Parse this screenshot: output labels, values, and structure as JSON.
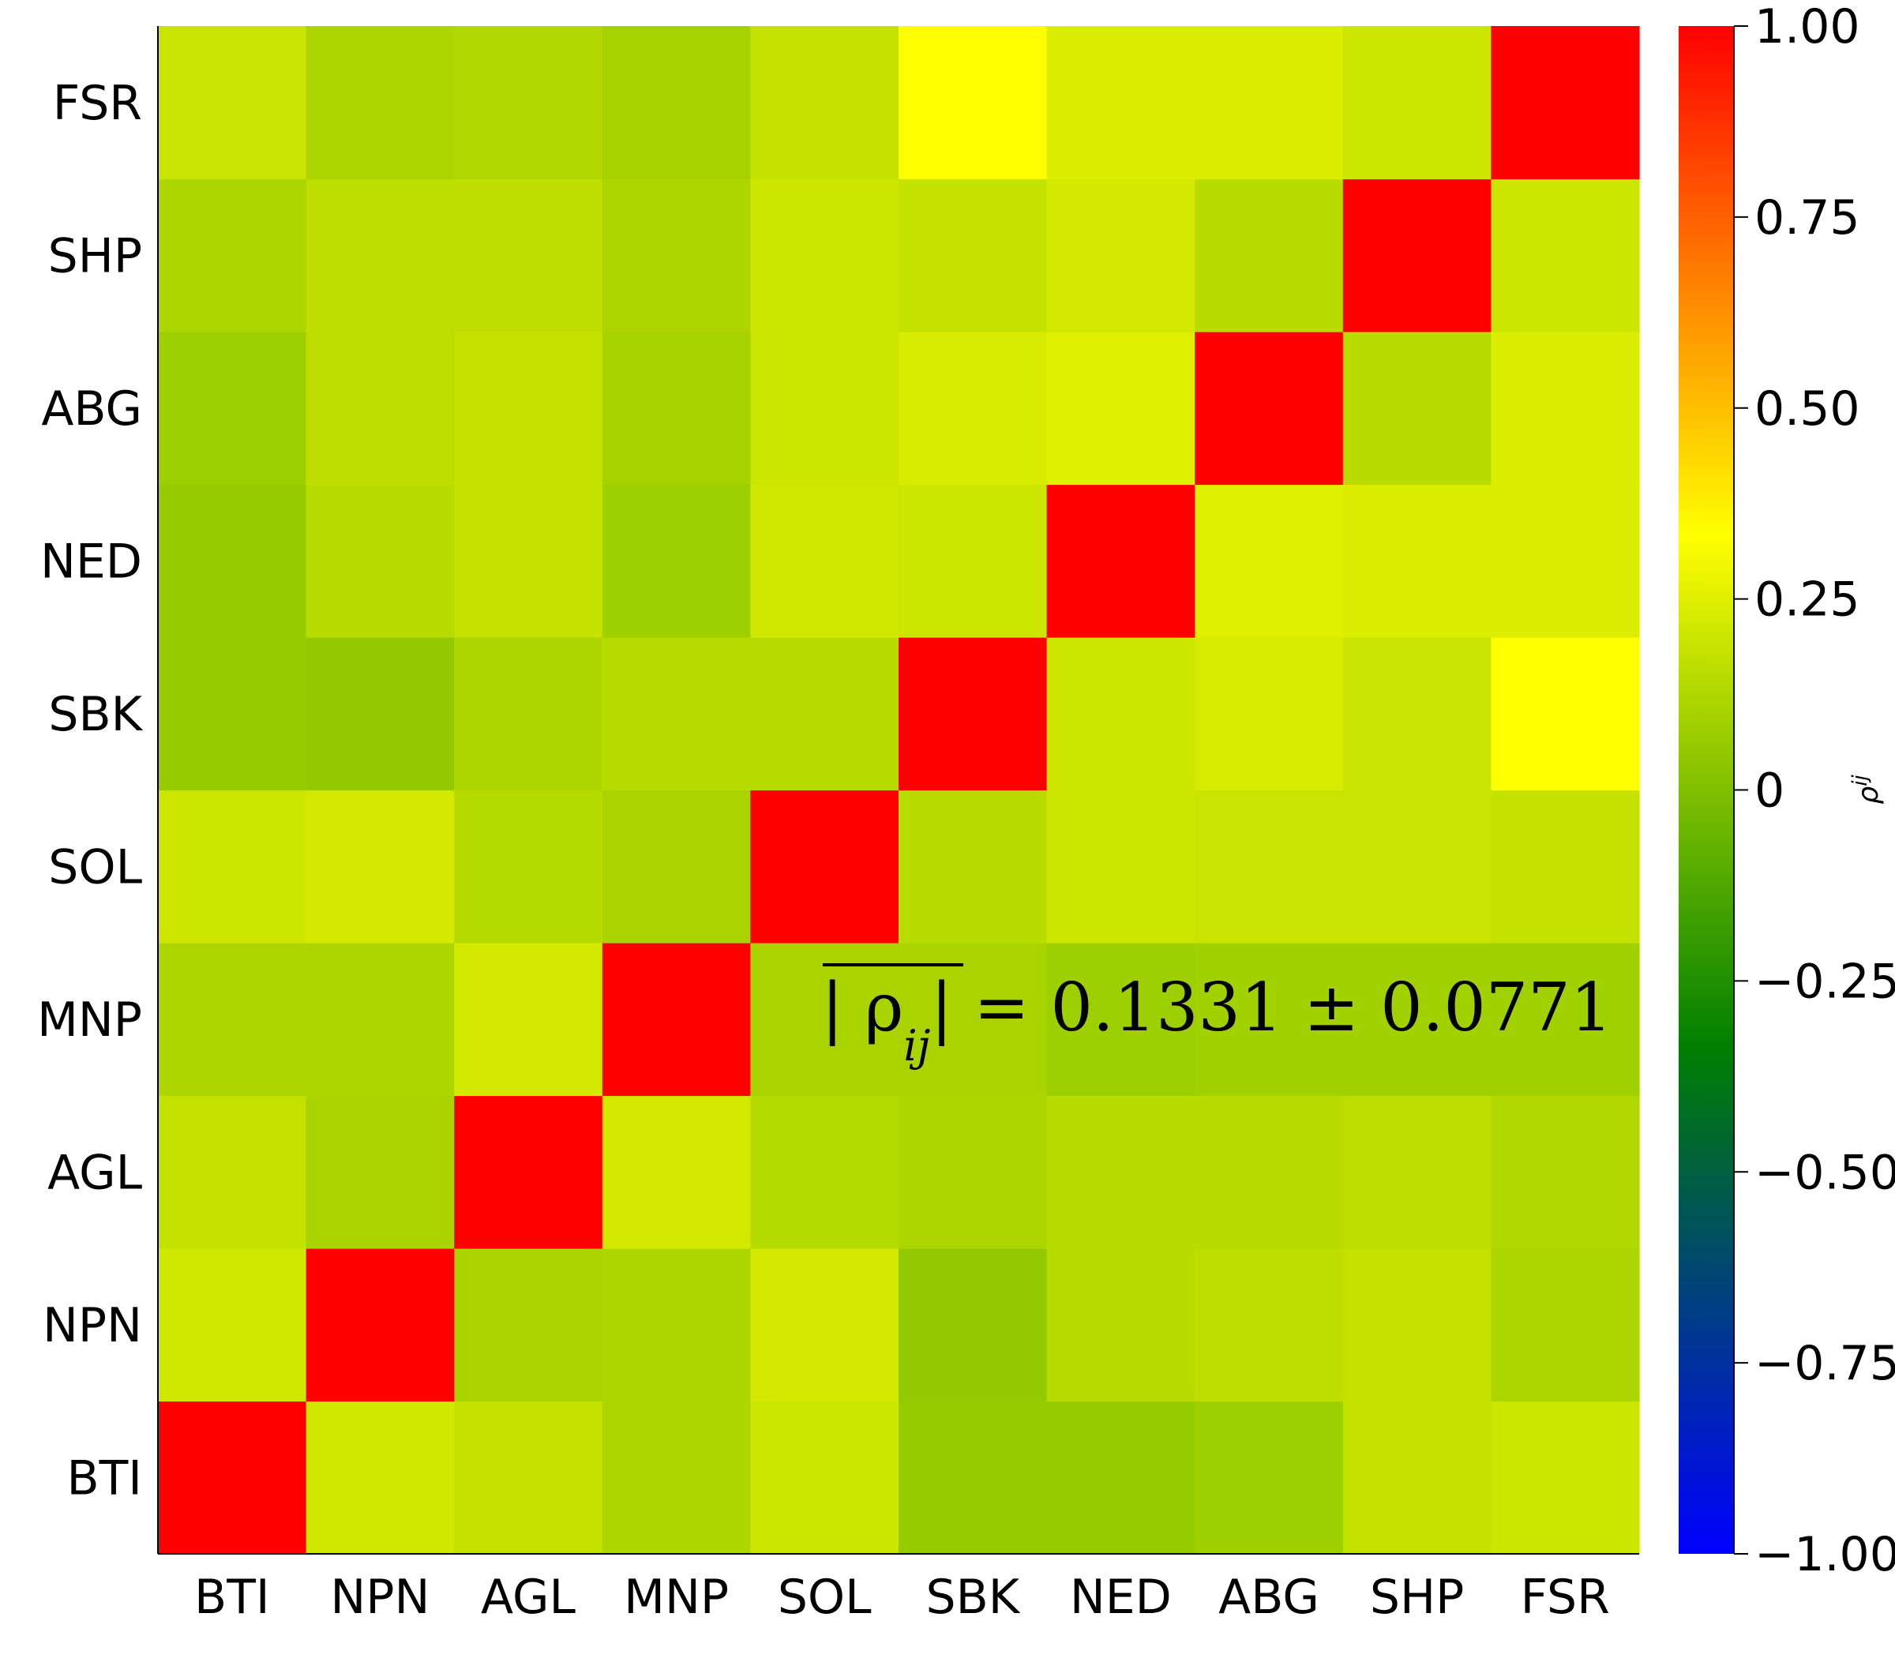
{
  "chart_data": {
    "type": "heatmap",
    "x_categories": [
      "BTI",
      "NPN",
      "AGL",
      "MNP",
      "SOL",
      "SBK",
      "NED",
      "ABG",
      "SHP",
      "FSR"
    ],
    "y_categories": [
      "BTI",
      "NPN",
      "AGL",
      "MNP",
      "SOL",
      "SBK",
      "NED",
      "ABG",
      "SHP",
      "FSR"
    ],
    "values": [
      [
        1.0,
        0.21,
        0.18,
        0.12,
        0.2,
        0.06,
        0.06,
        0.08,
        0.18,
        0.2
      ],
      [
        0.21,
        1.0,
        0.11,
        0.12,
        0.22,
        0.05,
        0.15,
        0.16,
        0.18,
        0.12
      ],
      [
        0.18,
        0.11,
        1.0,
        0.22,
        0.14,
        0.12,
        0.15,
        0.15,
        0.16,
        0.13
      ],
      [
        0.12,
        0.12,
        0.22,
        1.0,
        0.11,
        0.11,
        0.08,
        0.09,
        0.09,
        0.09
      ],
      [
        0.2,
        0.22,
        0.14,
        0.11,
        1.0,
        0.15,
        0.2,
        0.19,
        0.19,
        0.18
      ],
      [
        0.06,
        0.05,
        0.12,
        0.15,
        0.15,
        1.0,
        0.2,
        0.23,
        0.19,
        0.33
      ],
      [
        0.06,
        0.15,
        0.18,
        0.08,
        0.21,
        0.2,
        1.0,
        0.25,
        0.24,
        0.24
      ],
      [
        0.08,
        0.16,
        0.18,
        0.1,
        0.2,
        0.23,
        0.25,
        1.0,
        0.15,
        0.24
      ],
      [
        0.12,
        0.16,
        0.16,
        0.12,
        0.2,
        0.18,
        0.22,
        0.15,
        1.0,
        0.2
      ],
      [
        0.19,
        0.12,
        0.13,
        0.1,
        0.18,
        0.33,
        0.24,
        0.24,
        0.2,
        1.0
      ]
    ],
    "clim": [
      -1.0,
      1.0
    ],
    "colormap": [
      "#0000ff",
      "#008000",
      "#ffff00",
      "#ff0000"
    ],
    "colorbar": {
      "label": "ρ^{ij}",
      "ticks": [
        1.0,
        0.75,
        0.5,
        0.25,
        0,
        -0.25,
        -0.5,
        -0.75,
        -1.0
      ],
      "tick_labels": [
        "1.00",
        "0.75",
        "0.50",
        "0.25",
        "0",
        "−0.25",
        "−0.50",
        "−0.75",
        "−1.00"
      ]
    },
    "annotation": "|ρ_ij| = 0.1331 ± 0.0771",
    "grid": false
  }
}
